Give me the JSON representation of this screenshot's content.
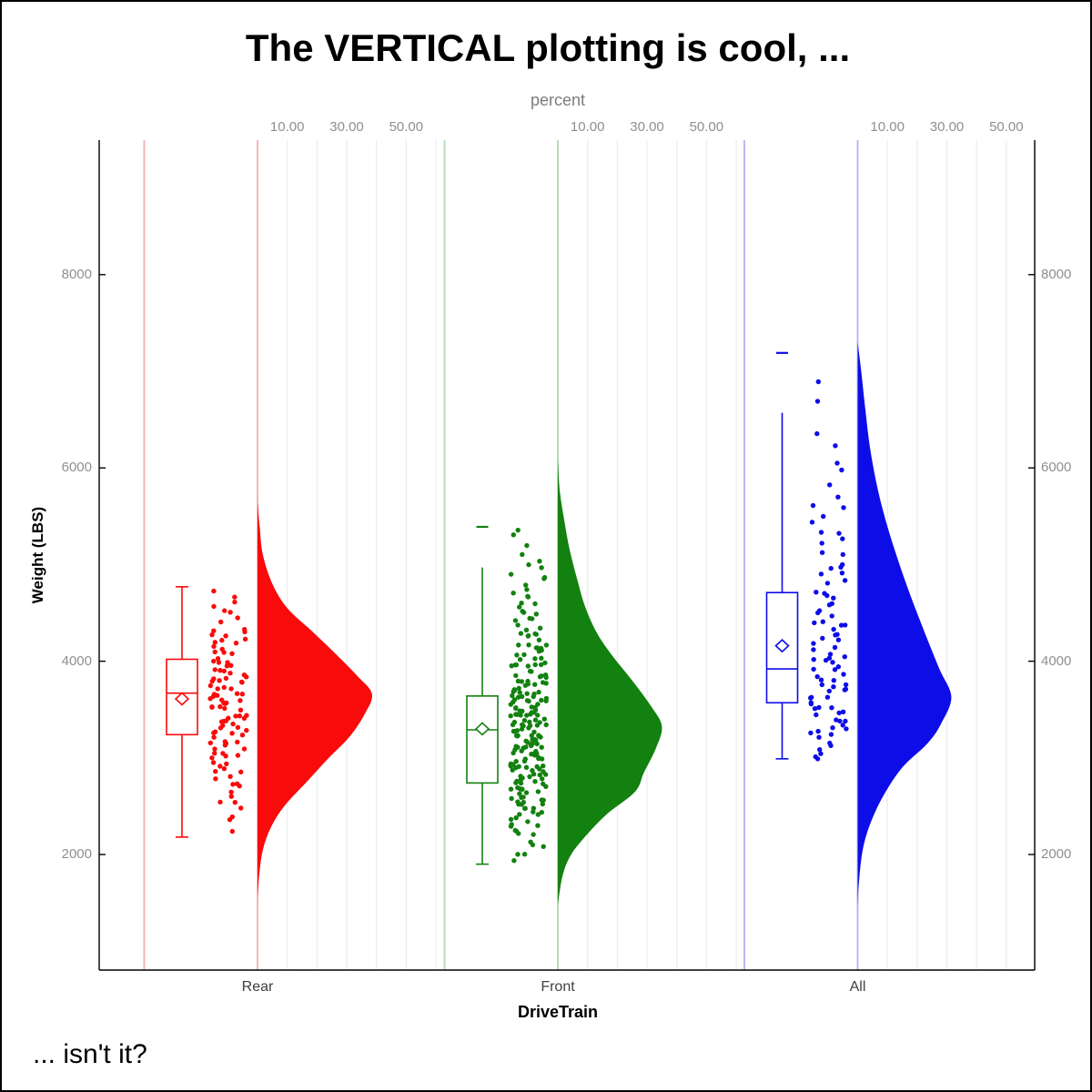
{
  "title": "The VERTICAL plotting is cool, ...",
  "footnote": "... isn't it?",
  "top_axis": {
    "label": "percent",
    "tick_labels": [
      "10.00",
      "30.00",
      "50.00"
    ],
    "tick_values": [
      10,
      30,
      50
    ],
    "gridline_values": [
      10,
      20,
      30,
      40,
      50,
      60
    ],
    "range": [
      0,
      60
    ]
  },
  "y_axis": {
    "label": "Weight (LBS)",
    "tick_labels": [
      "8000",
      "6000",
      "4000",
      "2000"
    ],
    "tick_values": [
      8000,
      6000,
      4000,
      2000
    ],
    "range": [
      800,
      9400
    ],
    "mirrored_on_right": true
  },
  "x_axis": {
    "label": "DriveTrain",
    "categories": [
      "Rear",
      "Front",
      "All"
    ]
  },
  "colors": {
    "background": "#ffffff",
    "frame_border": "#000000",
    "axis_line": "#000000",
    "gridline": "#ededed",
    "tick_text": "#8f8f8f",
    "top_axis_title_text": "#7d7d7d",
    "category_text": "#3f3f3f"
  },
  "chart_data": {
    "type": "raincloud",
    "orientation": "vertical",
    "description": "Per DriveTrain group: half-violin density (percent axis), box plot with whiskers and hollow mean diamond, jittered raw points of Weight (LBS)",
    "legend": "none",
    "grid": "vertical percent gridlines every 10 within each group",
    "jitter_seed": 11,
    "groups": [
      {
        "name": "Rear",
        "color": "#f90b0b",
        "pale_line_color": "#f7b4b4",
        "n": 110,
        "box": {
          "q1": 3240,
          "median": 3670,
          "q3": 4020,
          "mean": 3610,
          "whisker_low": 2180,
          "whisker_high": 4770,
          "top_cap": true,
          "bottom_cap": true,
          "max_marker": null
        },
        "data_min": 2180,
        "data_max": 4775,
        "density_weight_percent": [
          [
            5650,
            0
          ],
          [
            5400,
            0.7
          ],
          [
            5100,
            1.8
          ],
          [
            4800,
            5
          ],
          [
            4550,
            10
          ],
          [
            4320,
            18
          ],
          [
            4100,
            25.5
          ],
          [
            3850,
            33.5
          ],
          [
            3660,
            38.5
          ],
          [
            3450,
            36
          ],
          [
            3220,
            31
          ],
          [
            3000,
            24
          ],
          [
            2750,
            16.5
          ],
          [
            2500,
            9
          ],
          [
            2280,
            4.5
          ],
          [
            2050,
            1.8
          ],
          [
            1800,
            0.6
          ],
          [
            1550,
            0
          ]
        ]
      },
      {
        "name": "Front",
        "color": "#12810f",
        "pale_line_color": "#b4dcb4",
        "n": 226,
        "box": {
          "q1": 2740,
          "median": 3290,
          "q3": 3640,
          "mean": 3300,
          "whisker_low": 1900,
          "whisker_high": 4970,
          "top_cap": false,
          "bottom_cap": true,
          "max_marker": 5390
        },
        "data_min": 1900,
        "data_max": 5390,
        "density_weight_percent": [
          [
            6080,
            0
          ],
          [
            5750,
            0.7
          ],
          [
            5450,
            2.2
          ],
          [
            5150,
            4
          ],
          [
            4850,
            6.5
          ],
          [
            4580,
            9
          ],
          [
            4300,
            13
          ],
          [
            4050,
            18.5
          ],
          [
            3800,
            25
          ],
          [
            3550,
            31
          ],
          [
            3330,
            35
          ],
          [
            3100,
            33
          ],
          [
            2850,
            29
          ],
          [
            2650,
            26
          ],
          [
            2430,
            17
          ],
          [
            2230,
            10.5
          ],
          [
            2000,
            4.5
          ],
          [
            1780,
            1.6
          ],
          [
            1480,
            0
          ]
        ]
      },
      {
        "name": "All",
        "color": "#0d0de8",
        "pale_line_color": "#b9b9ef",
        "n": 92,
        "box": {
          "q1": 3570,
          "median": 3920,
          "q3": 4710,
          "mean": 4160,
          "whisker_low": 2990,
          "whisker_high": 6570,
          "top_cap": false,
          "bottom_cap": true,
          "max_marker": 7190
        },
        "data_min": 2990,
        "data_max": 7190,
        "density_weight_percent": [
          [
            7300,
            0
          ],
          [
            7000,
            1.2
          ],
          [
            6600,
            2.6
          ],
          [
            6200,
            4.2
          ],
          [
            5800,
            6.6
          ],
          [
            5450,
            9.5
          ],
          [
            5100,
            13
          ],
          [
            4700,
            17.5
          ],
          [
            4300,
            22.5
          ],
          [
            3920,
            27.5
          ],
          [
            3630,
            31.5
          ],
          [
            3350,
            28
          ],
          [
            3150,
            23.5
          ],
          [
            2900,
            15
          ],
          [
            2600,
            8.5
          ],
          [
            2300,
            4
          ],
          [
            2030,
            1.6
          ],
          [
            1700,
            0.4
          ],
          [
            1450,
            0
          ]
        ]
      }
    ]
  }
}
